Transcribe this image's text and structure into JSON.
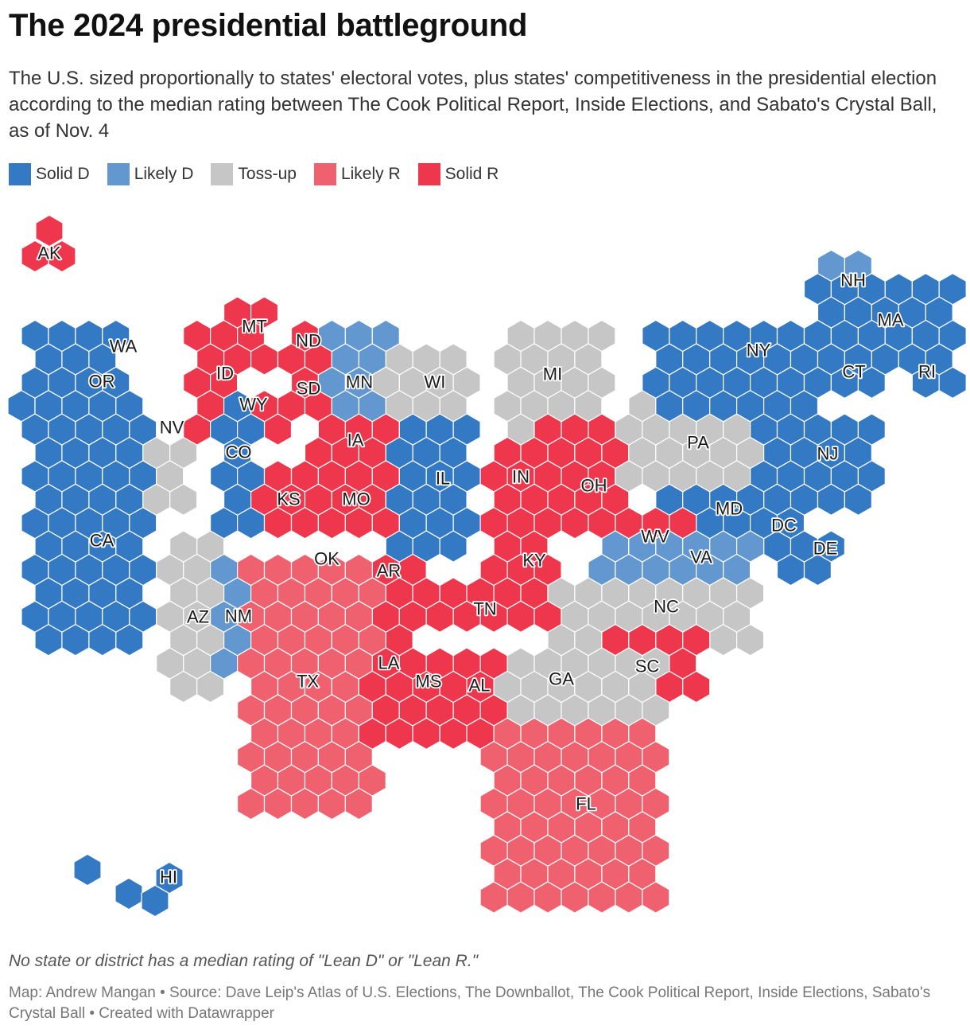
{
  "title": "The 2024 presidential battleground",
  "subtitle": "The U.S. sized proportionally to states' electoral votes, plus states' competitiveness in the presidential election according to the median rating between The Cook Political Report, Inside Elections, and Sabato's Crystal Ball, as of Nov. 4",
  "legend": [
    {
      "key": "solid_d",
      "label": "Solid D",
      "color": "#3479c4"
    },
    {
      "key": "likely_d",
      "label": "Likely D",
      "color": "#6298cf"
    },
    {
      "key": "tossup",
      "label": "Toss-up",
      "color": "#c6c6c6"
    },
    {
      "key": "likely_r",
      "label": "Likely R",
      "color": "#f0616f"
    },
    {
      "key": "solid_r",
      "label": "Solid R",
      "color": "#ee374c"
    }
  ],
  "states": [
    {
      "abbr": "AK",
      "rating": "solid_r",
      "ev": 3
    },
    {
      "abbr": "WA",
      "rating": "solid_d",
      "ev": 12
    },
    {
      "abbr": "OR",
      "rating": "solid_d",
      "ev": 8
    },
    {
      "abbr": "CA",
      "rating": "solid_d",
      "ev": 54
    },
    {
      "abbr": "NV",
      "rating": "tossup",
      "ev": 6
    },
    {
      "abbr": "ID",
      "rating": "solid_r",
      "ev": 4
    },
    {
      "abbr": "MT",
      "rating": "solid_r",
      "ev": 4
    },
    {
      "abbr": "WY",
      "rating": "solid_r",
      "ev": 3
    },
    {
      "abbr": "ND",
      "rating": "solid_r",
      "ev": 3
    },
    {
      "abbr": "SD",
      "rating": "solid_r",
      "ev": 3
    },
    {
      "abbr": "CO",
      "rating": "solid_d",
      "ev": 10
    },
    {
      "abbr": "MN",
      "rating": "likely_d",
      "ev": 10
    },
    {
      "abbr": "WI",
      "rating": "tossup",
      "ev": 10
    },
    {
      "abbr": "MI",
      "rating": "tossup",
      "ev": 15
    },
    {
      "abbr": "IA",
      "rating": "solid_r",
      "ev": 6
    },
    {
      "abbr": "KS",
      "rating": "solid_r",
      "ev": 6
    },
    {
      "abbr": "MO",
      "rating": "solid_r",
      "ev": 10
    },
    {
      "abbr": "IL",
      "rating": "solid_d",
      "ev": 19
    },
    {
      "abbr": "IN",
      "rating": "solid_r",
      "ev": 11
    },
    {
      "abbr": "OH",
      "rating": "solid_r",
      "ev": 17
    },
    {
      "abbr": "PA",
      "rating": "tossup",
      "ev": 19
    },
    {
      "abbr": "NY",
      "rating": "solid_d",
      "ev": 28
    },
    {
      "abbr": "NH",
      "rating": "likely_d",
      "ev": 4
    },
    {
      "abbr": "MA",
      "rating": "solid_d",
      "ev": 11
    },
    {
      "abbr": "CT",
      "rating": "solid_d",
      "ev": 7
    },
    {
      "abbr": "RI",
      "rating": "solid_d",
      "ev": 4
    },
    {
      "abbr": "NJ",
      "rating": "solid_d",
      "ev": 14
    },
    {
      "abbr": "MD",
      "rating": "solid_d",
      "ev": 10
    },
    {
      "abbr": "DC",
      "rating": "solid_d",
      "ev": 3
    },
    {
      "abbr": "DE",
      "rating": "solid_d",
      "ev": 3
    },
    {
      "abbr": "WV",
      "rating": "solid_r",
      "ev": 4
    },
    {
      "abbr": "VA",
      "rating": "likely_d",
      "ev": 13
    },
    {
      "abbr": "KY",
      "rating": "solid_r",
      "ev": 8
    },
    {
      "abbr": "OK",
      "rating": "solid_r",
      "ev": 7
    },
    {
      "abbr": "AR",
      "rating": "solid_r",
      "ev": 6
    },
    {
      "abbr": "TN",
      "rating": "solid_r",
      "ev": 11
    },
    {
      "abbr": "NC",
      "rating": "tossup",
      "ev": 16
    },
    {
      "abbr": "SC",
      "rating": "solid_r",
      "ev": 9
    },
    {
      "abbr": "AZ",
      "rating": "tossup",
      "ev": 11
    },
    {
      "abbr": "NM",
      "rating": "likely_d",
      "ev": 5
    },
    {
      "abbr": "TX",
      "rating": "likely_r",
      "ev": 40
    },
    {
      "abbr": "LA",
      "rating": "solid_r",
      "ev": 8
    },
    {
      "abbr": "MS",
      "rating": "solid_r",
      "ev": 6
    },
    {
      "abbr": "AL",
      "rating": "solid_r",
      "ev": 9
    },
    {
      "abbr": "GA",
      "rating": "tossup",
      "ev": 16
    },
    {
      "abbr": "FL",
      "rating": "likely_r",
      "ev": 30
    },
    {
      "abbr": "HI",
      "rating": "solid_d",
      "ev": 4
    }
  ],
  "note": "No state or district has a median rating of \"Lean D\" or \"Lean R.\"",
  "source": "Map: Andrew Mangan • Source: Dave Leip's Atlas of U.S. Elections, The Downballot, The Cook Political Report, Inside Elections, Sabato's Crystal Ball • Created with Datawrapper"
}
